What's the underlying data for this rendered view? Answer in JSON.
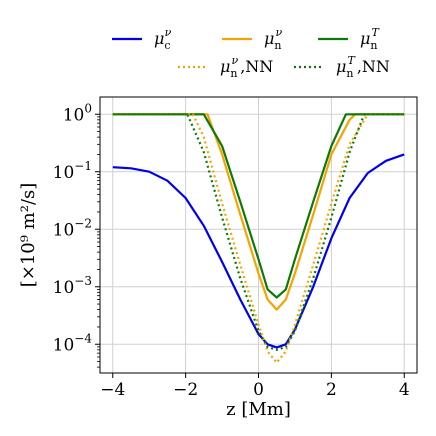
{
  "chart_data": {
    "type": "line",
    "xlabel": "z [Mm]",
    "ylabel": "[×10⁹ m²/s]",
    "xlim": [
      -4.35,
      4.35
    ],
    "ylim_log10": [
      -4.5,
      0.3
    ],
    "y_scale": "log",
    "grid": true,
    "legend_position": "top",
    "x_ticks": [
      -4,
      -2,
      0,
      2,
      4
    ],
    "x_tick_labels": [
      "−4",
      "−2",
      "0",
      "2",
      "4"
    ],
    "y_ticks_log10": [
      0,
      -1,
      -2,
      -3,
      -4
    ],
    "y_tick_labels": [
      {
        "base": "10",
        "exp": "0"
      },
      {
        "base": "10",
        "exp": "−1"
      },
      {
        "base": "10",
        "exp": "−2"
      },
      {
        "base": "10",
        "exp": "−3"
      },
      {
        "base": "10",
        "exp": "−4"
      }
    ],
    "series": [
      {
        "name": "μ_c^ν",
        "color": "#0000ee",
        "style": "solid",
        "x": [
          -4.0,
          -3.5,
          -3.0,
          -2.5,
          -2.0,
          -1.5,
          -1.0,
          -0.5,
          0.0,
          0.25,
          0.5,
          0.75,
          1.0,
          1.5,
          2.0,
          2.5,
          3.0,
          3.5,
          4.0
        ],
        "y": [
          0.12,
          0.115,
          0.1,
          0.07,
          0.035,
          0.0115,
          0.0027,
          0.0006,
          0.00015,
          0.0001,
          8.8e-05,
          0.0001,
          0.00018,
          0.001,
          0.007,
          0.035,
          0.095,
          0.155,
          0.2
        ]
      },
      {
        "name": "μ_n^ν",
        "color": "#f5a300",
        "style": "solid",
        "x": [
          -4.0,
          -1.4,
          -1.0,
          -0.5,
          0.0,
          0.25,
          0.5,
          0.75,
          1.0,
          1.5,
          2.0,
          2.5,
          2.65,
          3.0,
          4.0
        ],
        "y": [
          1.0,
          1.0,
          0.2,
          0.018,
          0.0017,
          0.0006,
          0.0004,
          0.0006,
          0.0017,
          0.018,
          0.2,
          0.8,
          1.0,
          1.0,
          1.0
        ]
      },
      {
        "name": "μ_n^T",
        "color": "#0b7a0b",
        "style": "solid",
        "x": [
          -4.0,
          -1.5,
          -1.0,
          -0.5,
          0.0,
          0.25,
          0.5,
          0.75,
          1.0,
          1.5,
          2.0,
          2.4,
          3.0,
          4.0
        ],
        "y": [
          1.0,
          1.0,
          0.28,
          0.03,
          0.003,
          0.0009,
          0.00065,
          0.0009,
          0.003,
          0.03,
          0.28,
          1.0,
          1.0,
          1.0
        ]
      },
      {
        "name": "μ_n^ν,NN",
        "color": "#f5a300",
        "style": "dotted",
        "x": [
          -4.0,
          -1.8,
          -1.5,
          -1.0,
          -0.5,
          0.0,
          0.25,
          0.5,
          0.75,
          1.0,
          1.5,
          2.0,
          2.5,
          3.0,
          4.0
        ],
        "y": [
          1.0,
          1.0,
          0.4,
          0.028,
          0.0024,
          0.00022,
          7.5e-05,
          4.8e-05,
          7.5e-05,
          0.00022,
          0.0024,
          0.028,
          0.3,
          1.0,
          1.0
        ]
      },
      {
        "name": "μ_n^T,NN",
        "color": "#0b7a0b",
        "style": "dotted",
        "x": [
          -4.0,
          -1.95,
          -1.5,
          -1.0,
          -0.5,
          0.0,
          0.25,
          0.5,
          0.75,
          1.0,
          1.5,
          2.0,
          2.5,
          2.9,
          4.0
        ],
        "y": [
          1.0,
          1.0,
          0.22,
          0.016,
          0.0014,
          0.00017,
          9e-05,
          8e-05,
          9e-05,
          0.00017,
          0.0014,
          0.016,
          0.22,
          1.0,
          1.0
        ]
      }
    ],
    "legend": [
      {
        "series": 0,
        "sym": "μ",
        "sub": "c",
        "sup": "ν",
        "suffix": ""
      },
      {
        "series": 1,
        "sym": "μ",
        "sub": "n",
        "sup": "ν",
        "suffix": ""
      },
      {
        "series": 2,
        "sym": "μ",
        "sub": "n",
        "sup": "T",
        "suffix": ""
      },
      {
        "series": 3,
        "sym": "μ",
        "sub": "n",
        "sup": "ν",
        "suffix": ",NN"
      },
      {
        "series": 4,
        "sym": "μ",
        "sub": "n",
        "sup": "T",
        "suffix": ",NN"
      }
    ]
  }
}
